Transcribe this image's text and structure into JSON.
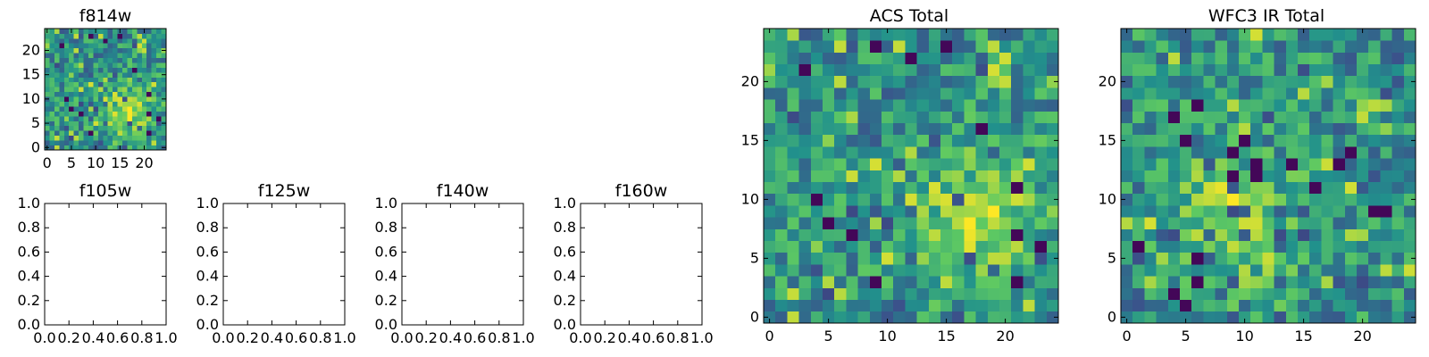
{
  "colors": {
    "palette": "viridis",
    "stops": [
      "#440154",
      "#3b528b",
      "#21918c",
      "#5ec962",
      "#fde725"
    ],
    "frame": "#000000",
    "background": "#ffffff"
  },
  "chart_data": [
    {
      "id": "f814w",
      "type": "heatmap",
      "title": "f814w",
      "xlim": [
        -0.5,
        24.5
      ],
      "ylim": [
        -0.5,
        24.5
      ],
      "xticks": [
        0,
        5,
        10,
        15,
        20
      ],
      "yticks": [
        0,
        5,
        10,
        15,
        20
      ],
      "grid": false,
      "colormap": "viridis",
      "value_range": [
        0,
        1
      ],
      "peak": [
        17,
        7
      ],
      "seed": 11
    },
    {
      "id": "f105w",
      "type": "empty",
      "title": "f105w",
      "xlim": [
        0,
        1
      ],
      "ylim": [
        0,
        1
      ],
      "xticks": [
        0.0,
        0.2,
        0.4,
        0.6,
        0.8,
        1.0
      ],
      "yticks": [
        0.0,
        0.2,
        0.4,
        0.6,
        0.8,
        1.0
      ],
      "xtick_labels": [
        "0.0",
        "0.2",
        "0.4",
        "0.6",
        "0.8",
        "1.0"
      ],
      "ytick_labels": [
        "0.0",
        "0.2",
        "0.4",
        "0.6",
        "0.8",
        "1.0"
      ],
      "grid": false
    },
    {
      "id": "f125w",
      "type": "empty",
      "title": "f125w",
      "xlim": [
        0,
        1
      ],
      "ylim": [
        0,
        1
      ],
      "xticks": [
        0.0,
        0.2,
        0.4,
        0.6,
        0.8,
        1.0
      ],
      "yticks": [
        0.0,
        0.2,
        0.4,
        0.6,
        0.8,
        1.0
      ],
      "xtick_labels": [
        "0.0",
        "0.2",
        "0.4",
        "0.6",
        "0.8",
        "1.0"
      ],
      "ytick_labels": [
        "0.0",
        "0.2",
        "0.4",
        "0.6",
        "0.8",
        "1.0"
      ],
      "grid": false
    },
    {
      "id": "f140w",
      "type": "empty",
      "title": "f140w",
      "xlim": [
        0,
        1
      ],
      "ylim": [
        0,
        1
      ],
      "xticks": [
        0.0,
        0.2,
        0.4,
        0.6,
        0.8,
        1.0
      ],
      "yticks": [
        0.0,
        0.2,
        0.4,
        0.6,
        0.8,
        1.0
      ],
      "xtick_labels": [
        "0.0",
        "0.2",
        "0.4",
        "0.6",
        "0.8",
        "1.0"
      ],
      "ytick_labels": [
        "0.0",
        "0.2",
        "0.4",
        "0.6",
        "0.8",
        "1.0"
      ],
      "grid": false
    },
    {
      "id": "f160w",
      "type": "empty",
      "title": "f160w",
      "xlim": [
        0,
        1
      ],
      "ylim": [
        0,
        1
      ],
      "xticks": [
        0.0,
        0.2,
        0.4,
        0.6,
        0.8,
        1.0
      ],
      "yticks": [
        0.0,
        0.2,
        0.4,
        0.6,
        0.8,
        1.0
      ],
      "xtick_labels": [
        "0.0",
        "0.2",
        "0.4",
        "0.6",
        "0.8",
        "1.0"
      ],
      "ytick_labels": [
        "0.0",
        "0.2",
        "0.4",
        "0.6",
        "0.8",
        "1.0"
      ],
      "grid": false
    },
    {
      "id": "acs-total",
      "type": "heatmap",
      "title": "ACS Total",
      "xlim": [
        -0.5,
        24.5
      ],
      "ylim": [
        -0.5,
        24.5
      ],
      "xticks": [
        0,
        5,
        10,
        15,
        20
      ],
      "yticks": [
        0,
        5,
        10,
        15,
        20
      ],
      "grid": false,
      "colormap": "viridis",
      "value_range": [
        0,
        1
      ],
      "peak": [
        18,
        8
      ],
      "seed": 11
    },
    {
      "id": "wfc3-ir-total",
      "type": "heatmap",
      "title": "WFC3 IR Total",
      "xlim": [
        -0.5,
        24.5
      ],
      "ylim": [
        -0.5,
        24.5
      ],
      "xticks": [
        0,
        5,
        10,
        15,
        20
      ],
      "yticks": [
        0,
        5,
        10,
        15,
        20
      ],
      "grid": false,
      "colormap": "viridis",
      "value_range": [
        0,
        1
      ],
      "peak": [
        9,
        8
      ],
      "seed": 23
    }
  ]
}
